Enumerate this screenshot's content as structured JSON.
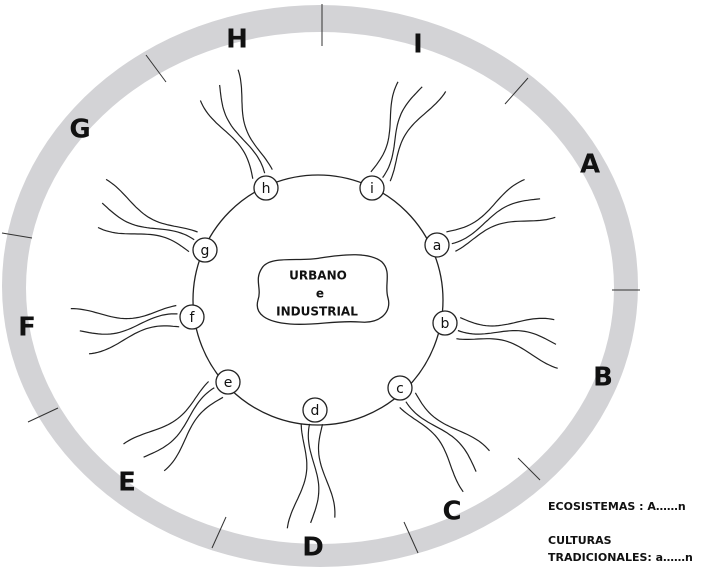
{
  "ecosystems": [
    "A",
    "B",
    "C",
    "D",
    "E",
    "F",
    "G",
    "H",
    "I"
  ],
  "cultures": [
    "a",
    "b",
    "c",
    "d",
    "e",
    "f",
    "g",
    "h",
    "i"
  ],
  "center": [
    "URBANO",
    "e",
    "INDUSTRIAL"
  ],
  "legend": {
    "ecosystems": "ECOSISTEMAS  : A……n",
    "cultures_1": "CULTURAS",
    "cultures_2": "TRADICIONALES: a……n"
  }
}
